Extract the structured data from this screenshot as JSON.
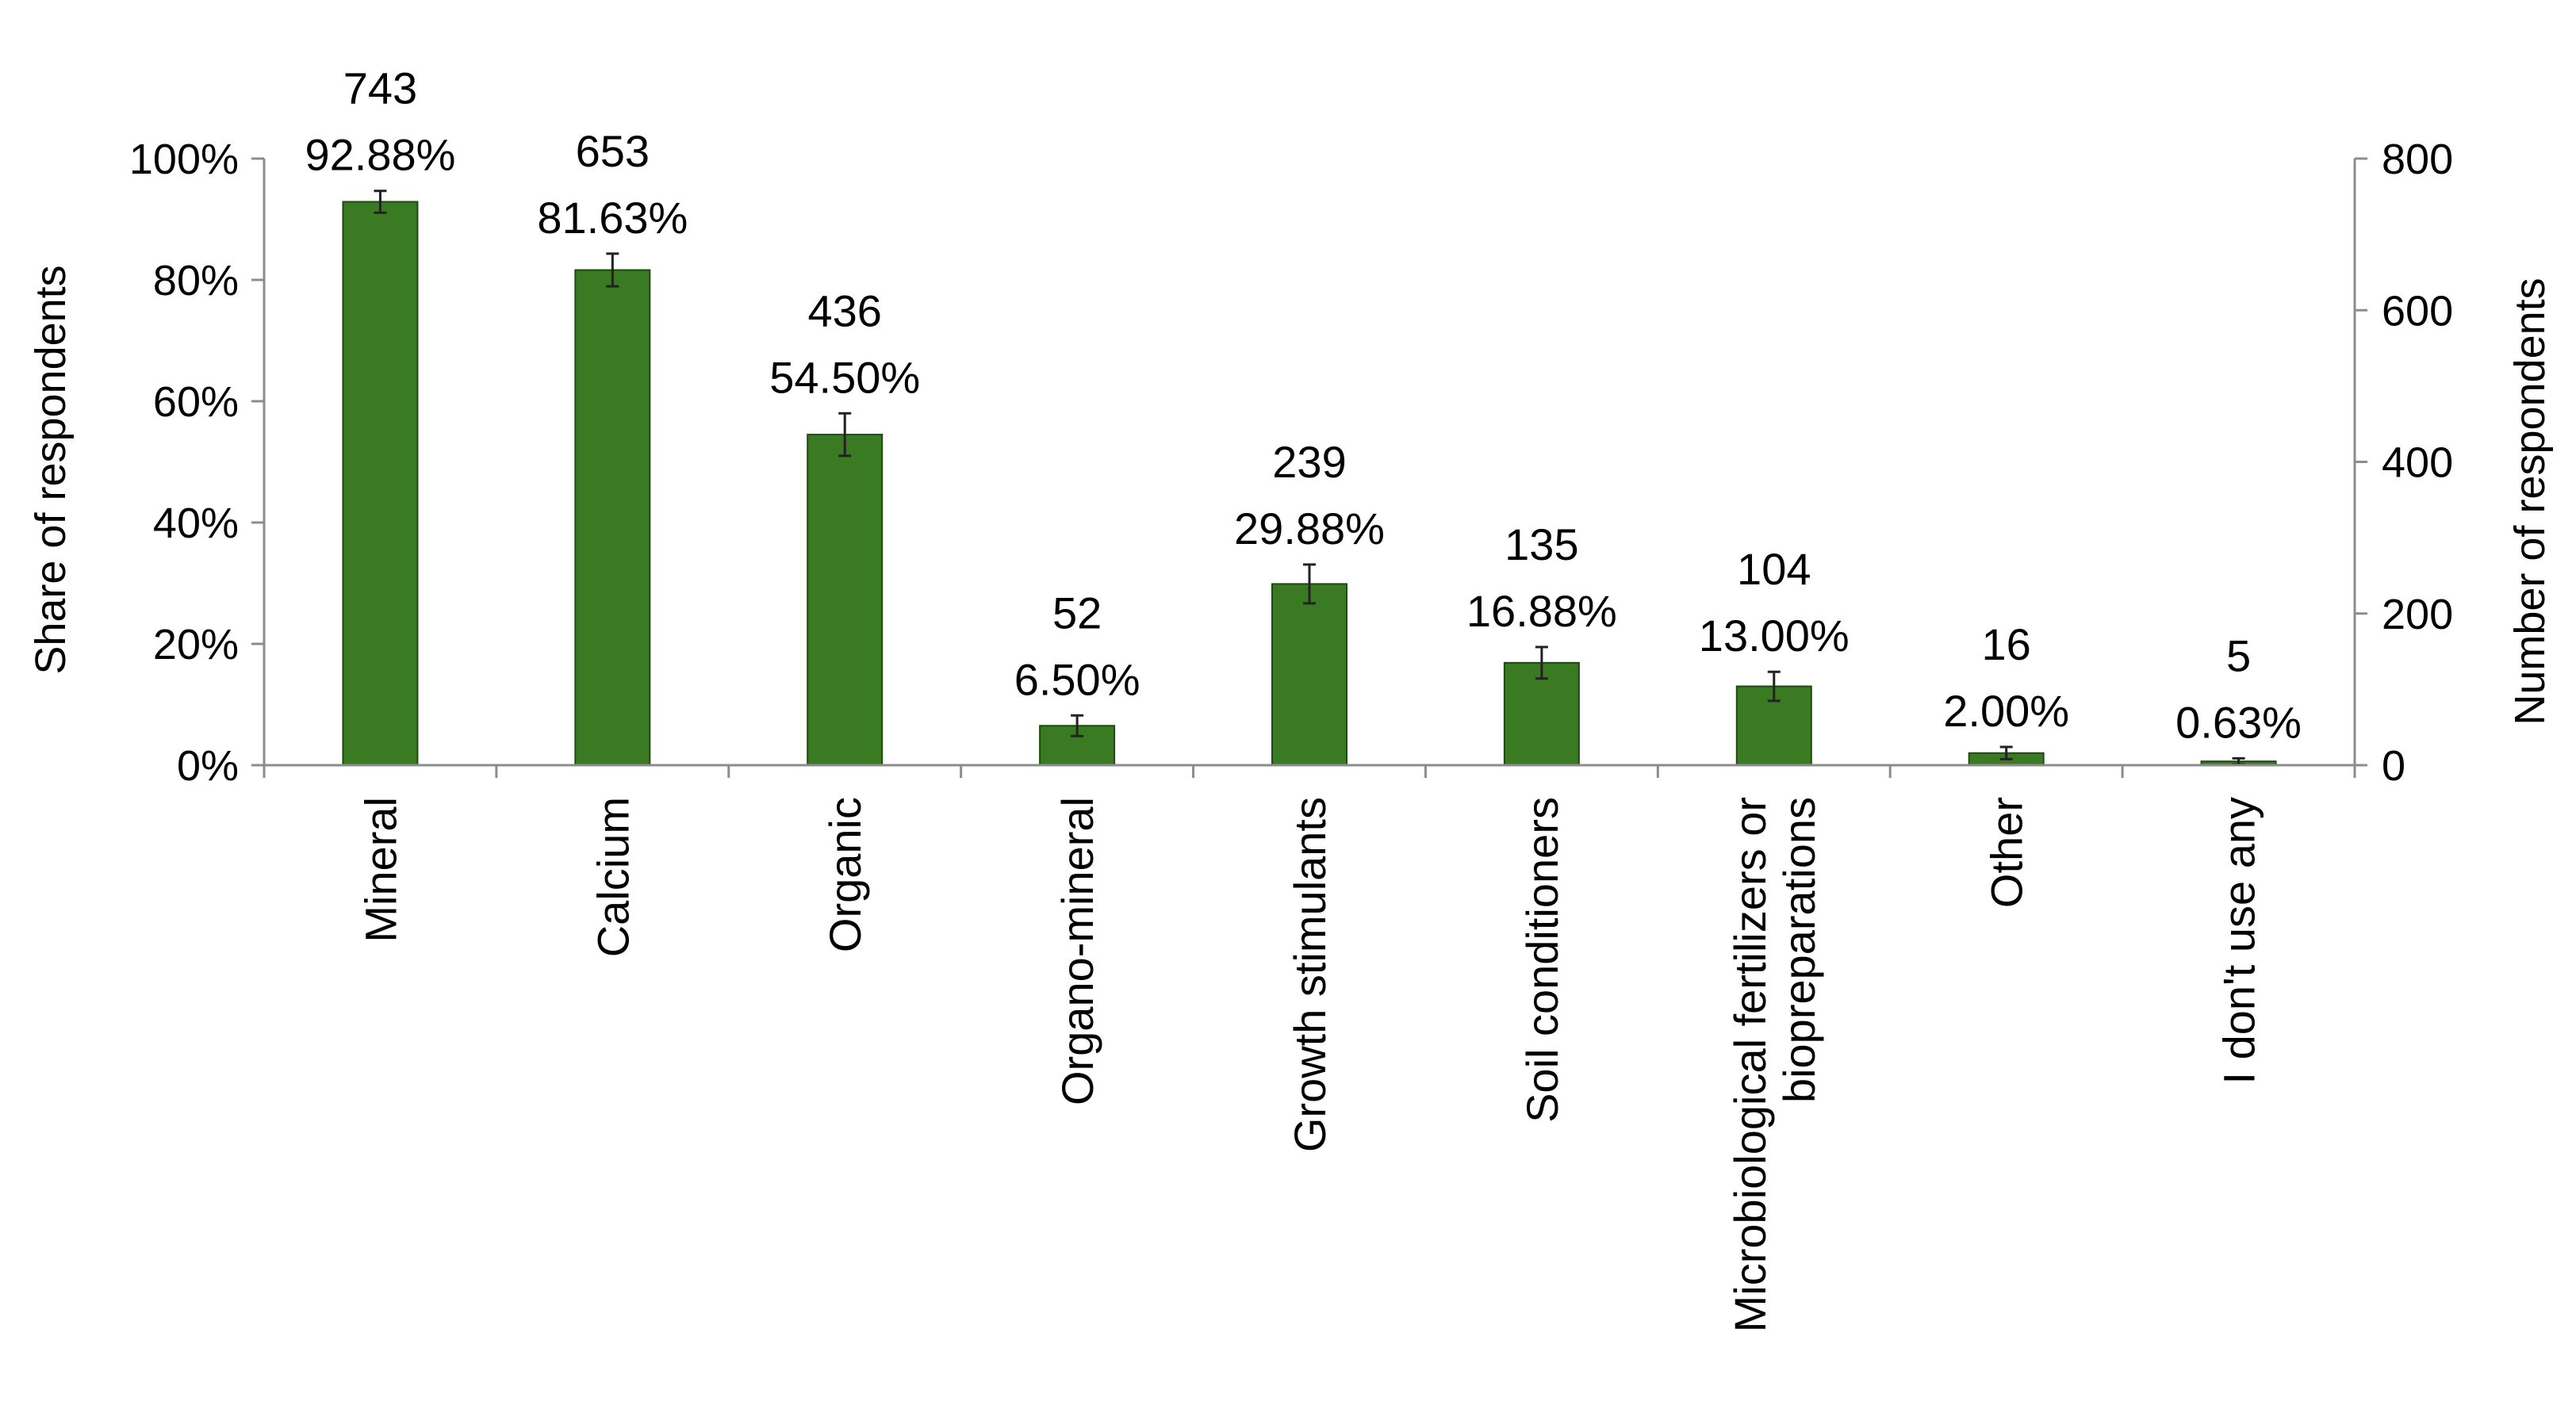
{
  "chart_data": {
    "type": "bar",
    "categories": [
      "Mineral",
      "Calcium",
      "Organic",
      "Organo-mineral",
      "Growth stimulants",
      "Soil conditioners",
      "Microbiological fertilizers or biopreparations",
      "Other",
      "I don't use any"
    ],
    "category_lines": [
      [
        "Mineral"
      ],
      [
        "Calcium"
      ],
      [
        "Organic"
      ],
      [
        "Organo-mineral"
      ],
      [
        "Growth stimulants"
      ],
      [
        "Soil conditioners"
      ],
      [
        "Microbiological fertilizers or",
        "biopreparations"
      ],
      [
        "Other"
      ],
      [
        "I don't use any"
      ]
    ],
    "series": [
      {
        "counts": [
          743,
          653,
          436,
          52,
          239,
          135,
          104,
          16,
          5
        ],
        "shares": [
          92.88,
          81.63,
          54.5,
          6.5,
          29.88,
          16.88,
          13.0,
          2.0,
          0.63
        ],
        "count_labels": [
          "743",
          "653",
          "436",
          "52",
          "239",
          "135",
          "104",
          "16",
          "5"
        ],
        "share_labels": [
          "92.88%",
          "81.63%",
          "54.50%",
          "6.50%",
          "29.88%",
          "16.88%",
          "13.00%",
          "2.00%",
          "0.63%"
        ],
        "error_margin_pct": [
          1.8,
          2.7,
          3.5,
          1.7,
          3.2,
          2.6,
          2.4,
          1.0,
          0.5
        ]
      }
    ],
    "ylabel": "Share of respondents",
    "y2label": "Number of respondents",
    "ylim": [
      0,
      100
    ],
    "y2lim": [
      0,
      800
    ],
    "yticks": [
      "0%",
      "20%",
      "40%",
      "60%",
      "80%",
      "100%"
    ],
    "y2ticks": [
      "0",
      "200",
      "400",
      "600",
      "800"
    ],
    "grid": false,
    "bar_color": "#3a7a23"
  }
}
